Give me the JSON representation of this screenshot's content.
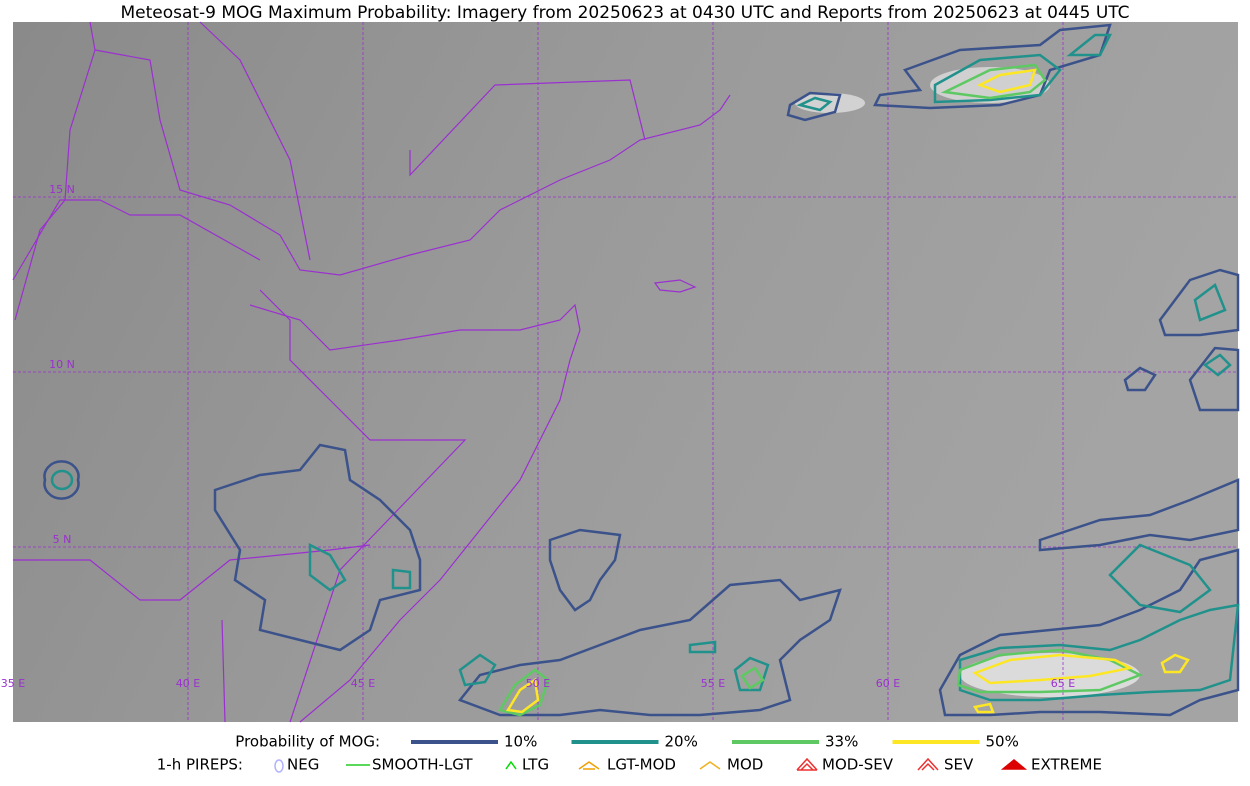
{
  "title": "Meteosat-9 MOG Maximum Probability: Imagery from 20250623 at 0430 UTC and Reports from 20250623 at 0445 UTC",
  "map": {
    "lat_labels": [
      "15 N",
      "10 N",
      "5 N"
    ],
    "lon_labels": [
      "35 E",
      "40 E",
      "45 E",
      "50 E",
      "55 E",
      "60 E",
      "65 E"
    ],
    "grid_color": "#9b30d0"
  },
  "legend": {
    "probability": {
      "title": "Probability of MOG:",
      "items": [
        {
          "label": "10%",
          "color": "#3b528b"
        },
        {
          "label": "20%",
          "color": "#21918c"
        },
        {
          "label": "33%",
          "color": "#5ec962"
        },
        {
          "label": "50%",
          "color": "#fde725"
        }
      ]
    },
    "pireps": {
      "title": "1-h PIREPS:",
      "items": [
        {
          "label": "NEG",
          "color": "#b0b0ff"
        },
        {
          "label": "SMOOTH-LGT",
          "color": "#22cc22"
        },
        {
          "label": "LTG",
          "color": "#00dd00"
        },
        {
          "label": "LGT-MOD",
          "color": "#f0a000"
        },
        {
          "label": "MOD",
          "color": "#f0b020"
        },
        {
          "label": "MOD-SEV",
          "color": "#ee3030"
        },
        {
          "label": "SEV",
          "color": "#ee3030"
        },
        {
          "label": "EXTREME",
          "color": "#dd0000"
        }
      ]
    }
  }
}
